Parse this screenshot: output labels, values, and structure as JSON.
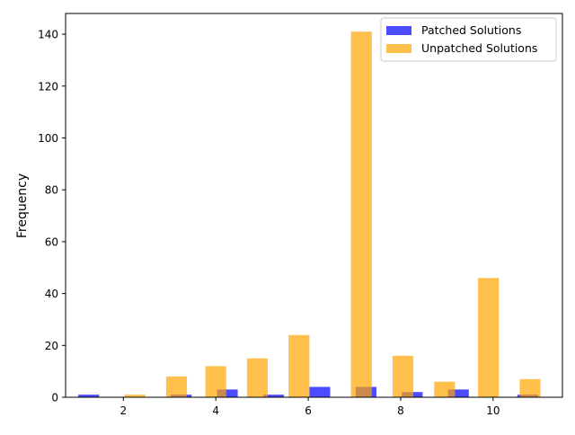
{
  "chart_data": {
    "type": "bar",
    "title": "",
    "xlabel": "",
    "ylabel": "Frequency",
    "xlim": [
      0.75,
      11.5
    ],
    "ylim": [
      0,
      148
    ],
    "xticks": [
      2,
      4,
      6,
      8,
      10
    ],
    "yticks": [
      0,
      20,
      40,
      60,
      80,
      100,
      120,
      140
    ],
    "grid": false,
    "legend_position": "top-right",
    "bar_width": 0.45,
    "series": [
      {
        "name": "Patched Solutions",
        "color": "#0000ff",
        "opacity": 0.7,
        "x": [
          1.25,
          3.25,
          4.25,
          5.25,
          6.25,
          7.25,
          8.25,
          9.25,
          10.75
        ],
        "values": [
          1,
          1,
          3,
          1,
          4,
          4,
          2,
          3,
          1
        ]
      },
      {
        "name": "Unpatched Solutions",
        "color": "#ffa500",
        "opacity": 0.7,
        "x": [
          2.25,
          3.15,
          4.0,
          4.9,
          5.8,
          7.15,
          8.05,
          8.95,
          9.9,
          10.8
        ],
        "values": [
          1,
          8,
          12,
          15,
          24,
          141,
          16,
          6,
          46,
          7
        ]
      }
    ]
  }
}
